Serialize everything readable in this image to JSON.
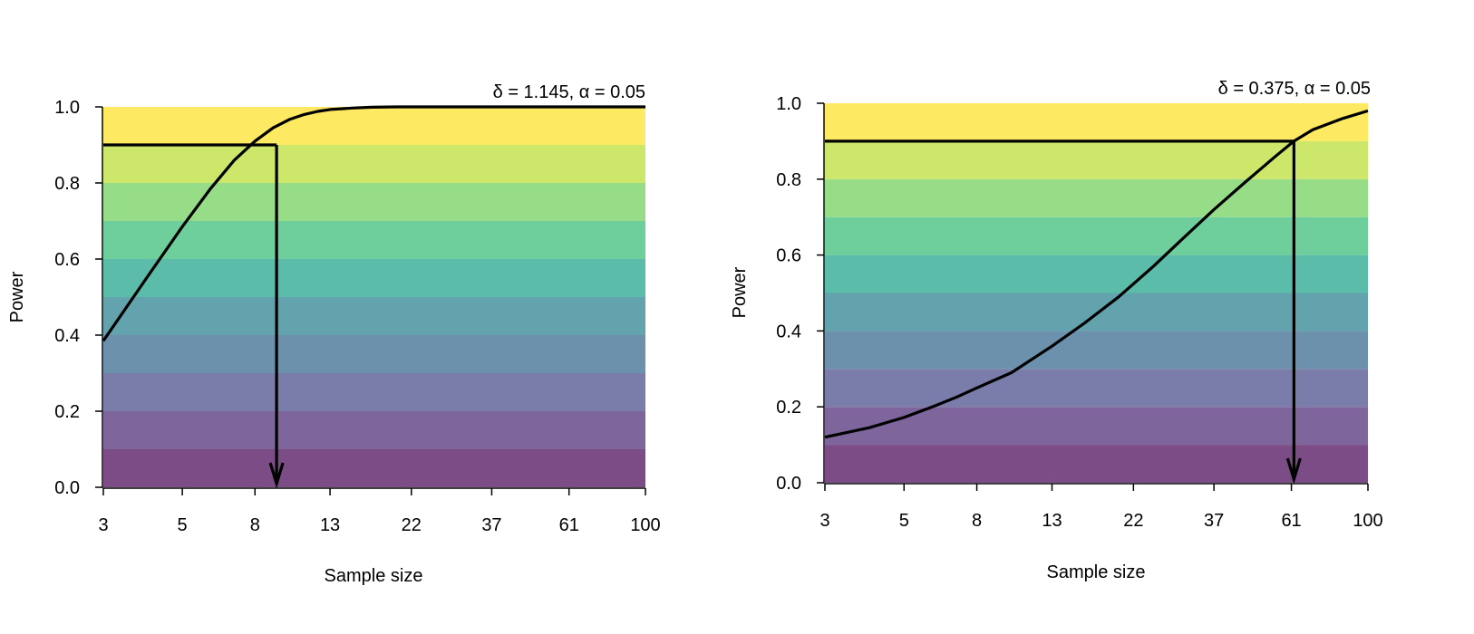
{
  "chart_data": [
    {
      "type": "line",
      "title": "",
      "annotation": "δ = 1.145, α = 0.05",
      "xlabel": "Sample size",
      "ylabel": "Power",
      "x_scale": "log",
      "xlim": [
        3,
        100
      ],
      "ylim": [
        0,
        1
      ],
      "x_ticks": [
        3,
        5,
        8,
        13,
        22,
        37,
        61,
        100
      ],
      "x_tick_labels": [
        "3",
        "5",
        "8",
        "13",
        "22",
        "37",
        "61",
        "100"
      ],
      "y_ticks": [
        0,
        0.2,
        0.4,
        0.6,
        0.8,
        1
      ],
      "y_tick_labels": [
        "0.0",
        "0.2",
        "0.4",
        "0.6",
        "0.8",
        "1.0"
      ],
      "power_bands": {
        "edges": [
          0,
          0.1,
          0.2,
          0.3,
          0.4,
          0.5,
          0.6,
          0.7,
          0.8,
          0.9,
          1.0
        ],
        "colors": [
          "#7c4c87",
          "#7e659c",
          "#7a7ca9",
          "#6b91ad",
          "#62a3ad",
          "#5bbca9",
          "#6fcf9c",
          "#97dc87",
          "#cde76b",
          "#fdea62"
        ]
      },
      "grid": false,
      "series": [
        {
          "x": [
            3,
            4,
            5,
            6,
            7,
            8,
            9,
            10,
            11,
            12,
            13,
            15,
            17,
            20,
            25,
            30,
            40,
            60,
            100
          ],
          "y": [
            0.385,
            0.555,
            0.685,
            0.785,
            0.86,
            0.91,
            0.945,
            0.967,
            0.98,
            0.988,
            0.993,
            0.997,
            0.999,
            1.0,
            1.0,
            1.0,
            1.0,
            1.0,
            1.0
          ]
        }
      ],
      "target": {
        "power": 0.9,
        "sample_size": 9.2
      }
    },
    {
      "type": "line",
      "title": "",
      "annotation": "δ = 0.375, α = 0.05",
      "xlabel": "Sample size",
      "ylabel": "Power",
      "x_scale": "log",
      "xlim": [
        3,
        100
      ],
      "ylim": [
        0,
        1
      ],
      "x_ticks": [
        3,
        5,
        8,
        13,
        22,
        37,
        61,
        100
      ],
      "x_tick_labels": [
        "3",
        "5",
        "8",
        "13",
        "22",
        "37",
        "61",
        "100"
      ],
      "y_ticks": [
        0,
        0.2,
        0.4,
        0.6,
        0.8,
        1
      ],
      "y_tick_labels": [
        "0.0",
        "0.2",
        "0.4",
        "0.6",
        "0.8",
        "1.0"
      ],
      "power_bands": {
        "edges": [
          0,
          0.1,
          0.2,
          0.3,
          0.4,
          0.5,
          0.6,
          0.7,
          0.8,
          0.9,
          1.0
        ],
        "colors": [
          "#7c4c87",
          "#7e659c",
          "#7a7ca9",
          "#6b91ad",
          "#62a3ad",
          "#5bbca9",
          "#6fcf9c",
          "#97dc87",
          "#cde76b",
          "#fdea62"
        ]
      },
      "grid": false,
      "series": [
        {
          "x": [
            3,
            4,
            5,
            6,
            7,
            8,
            10,
            13,
            16,
            20,
            25,
            30,
            37,
            45,
            55,
            62,
            70,
            85,
            100
          ],
          "y": [
            0.12,
            0.145,
            0.172,
            0.2,
            0.225,
            0.25,
            0.29,
            0.36,
            0.42,
            0.49,
            0.57,
            0.64,
            0.72,
            0.79,
            0.86,
            0.9,
            0.93,
            0.96,
            0.98
          ]
        }
      ],
      "target": {
        "power": 0.9,
        "sample_size": 62
      }
    }
  ]
}
